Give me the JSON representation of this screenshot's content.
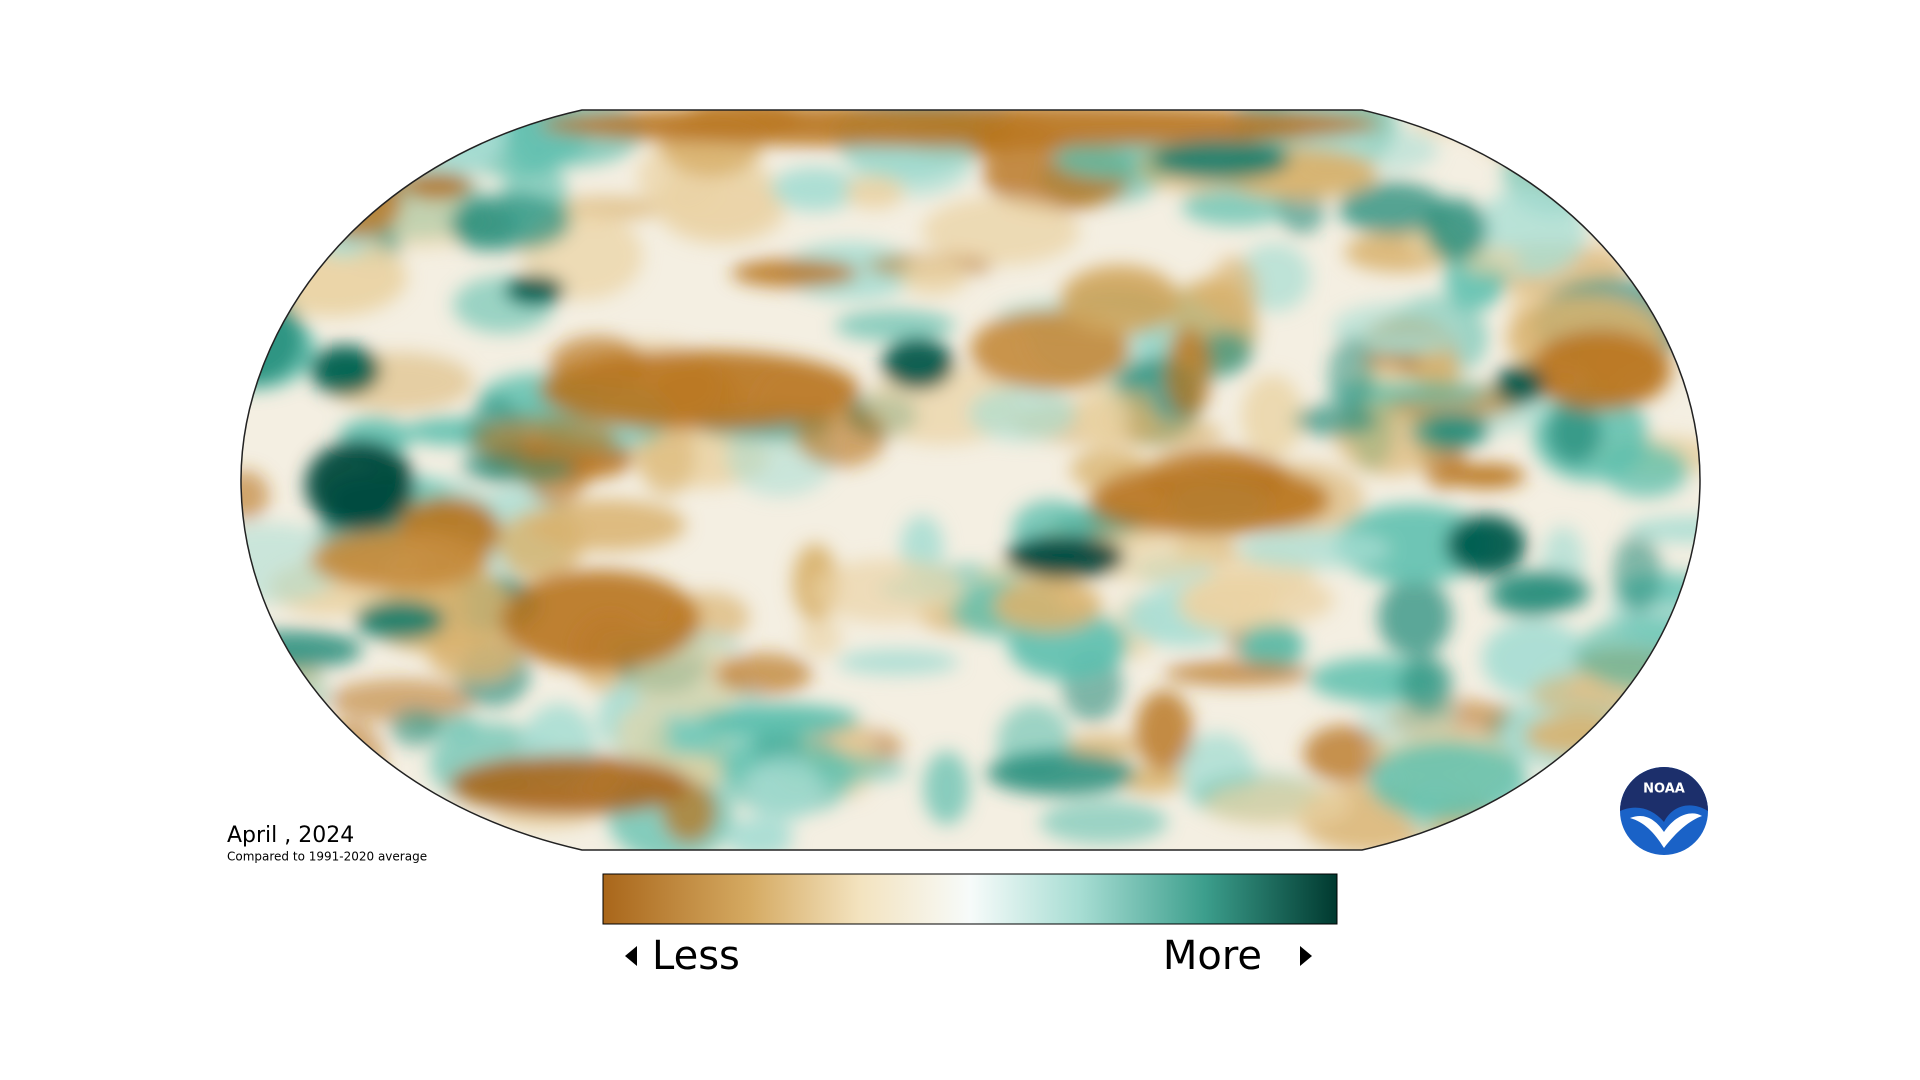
{
  "date_label": "April , 2024",
  "subtitle": "Compared to 1991-2020 average",
  "legend": {
    "low_label": "Less",
    "high_label": "More"
  },
  "logo": "NOAA"
}
